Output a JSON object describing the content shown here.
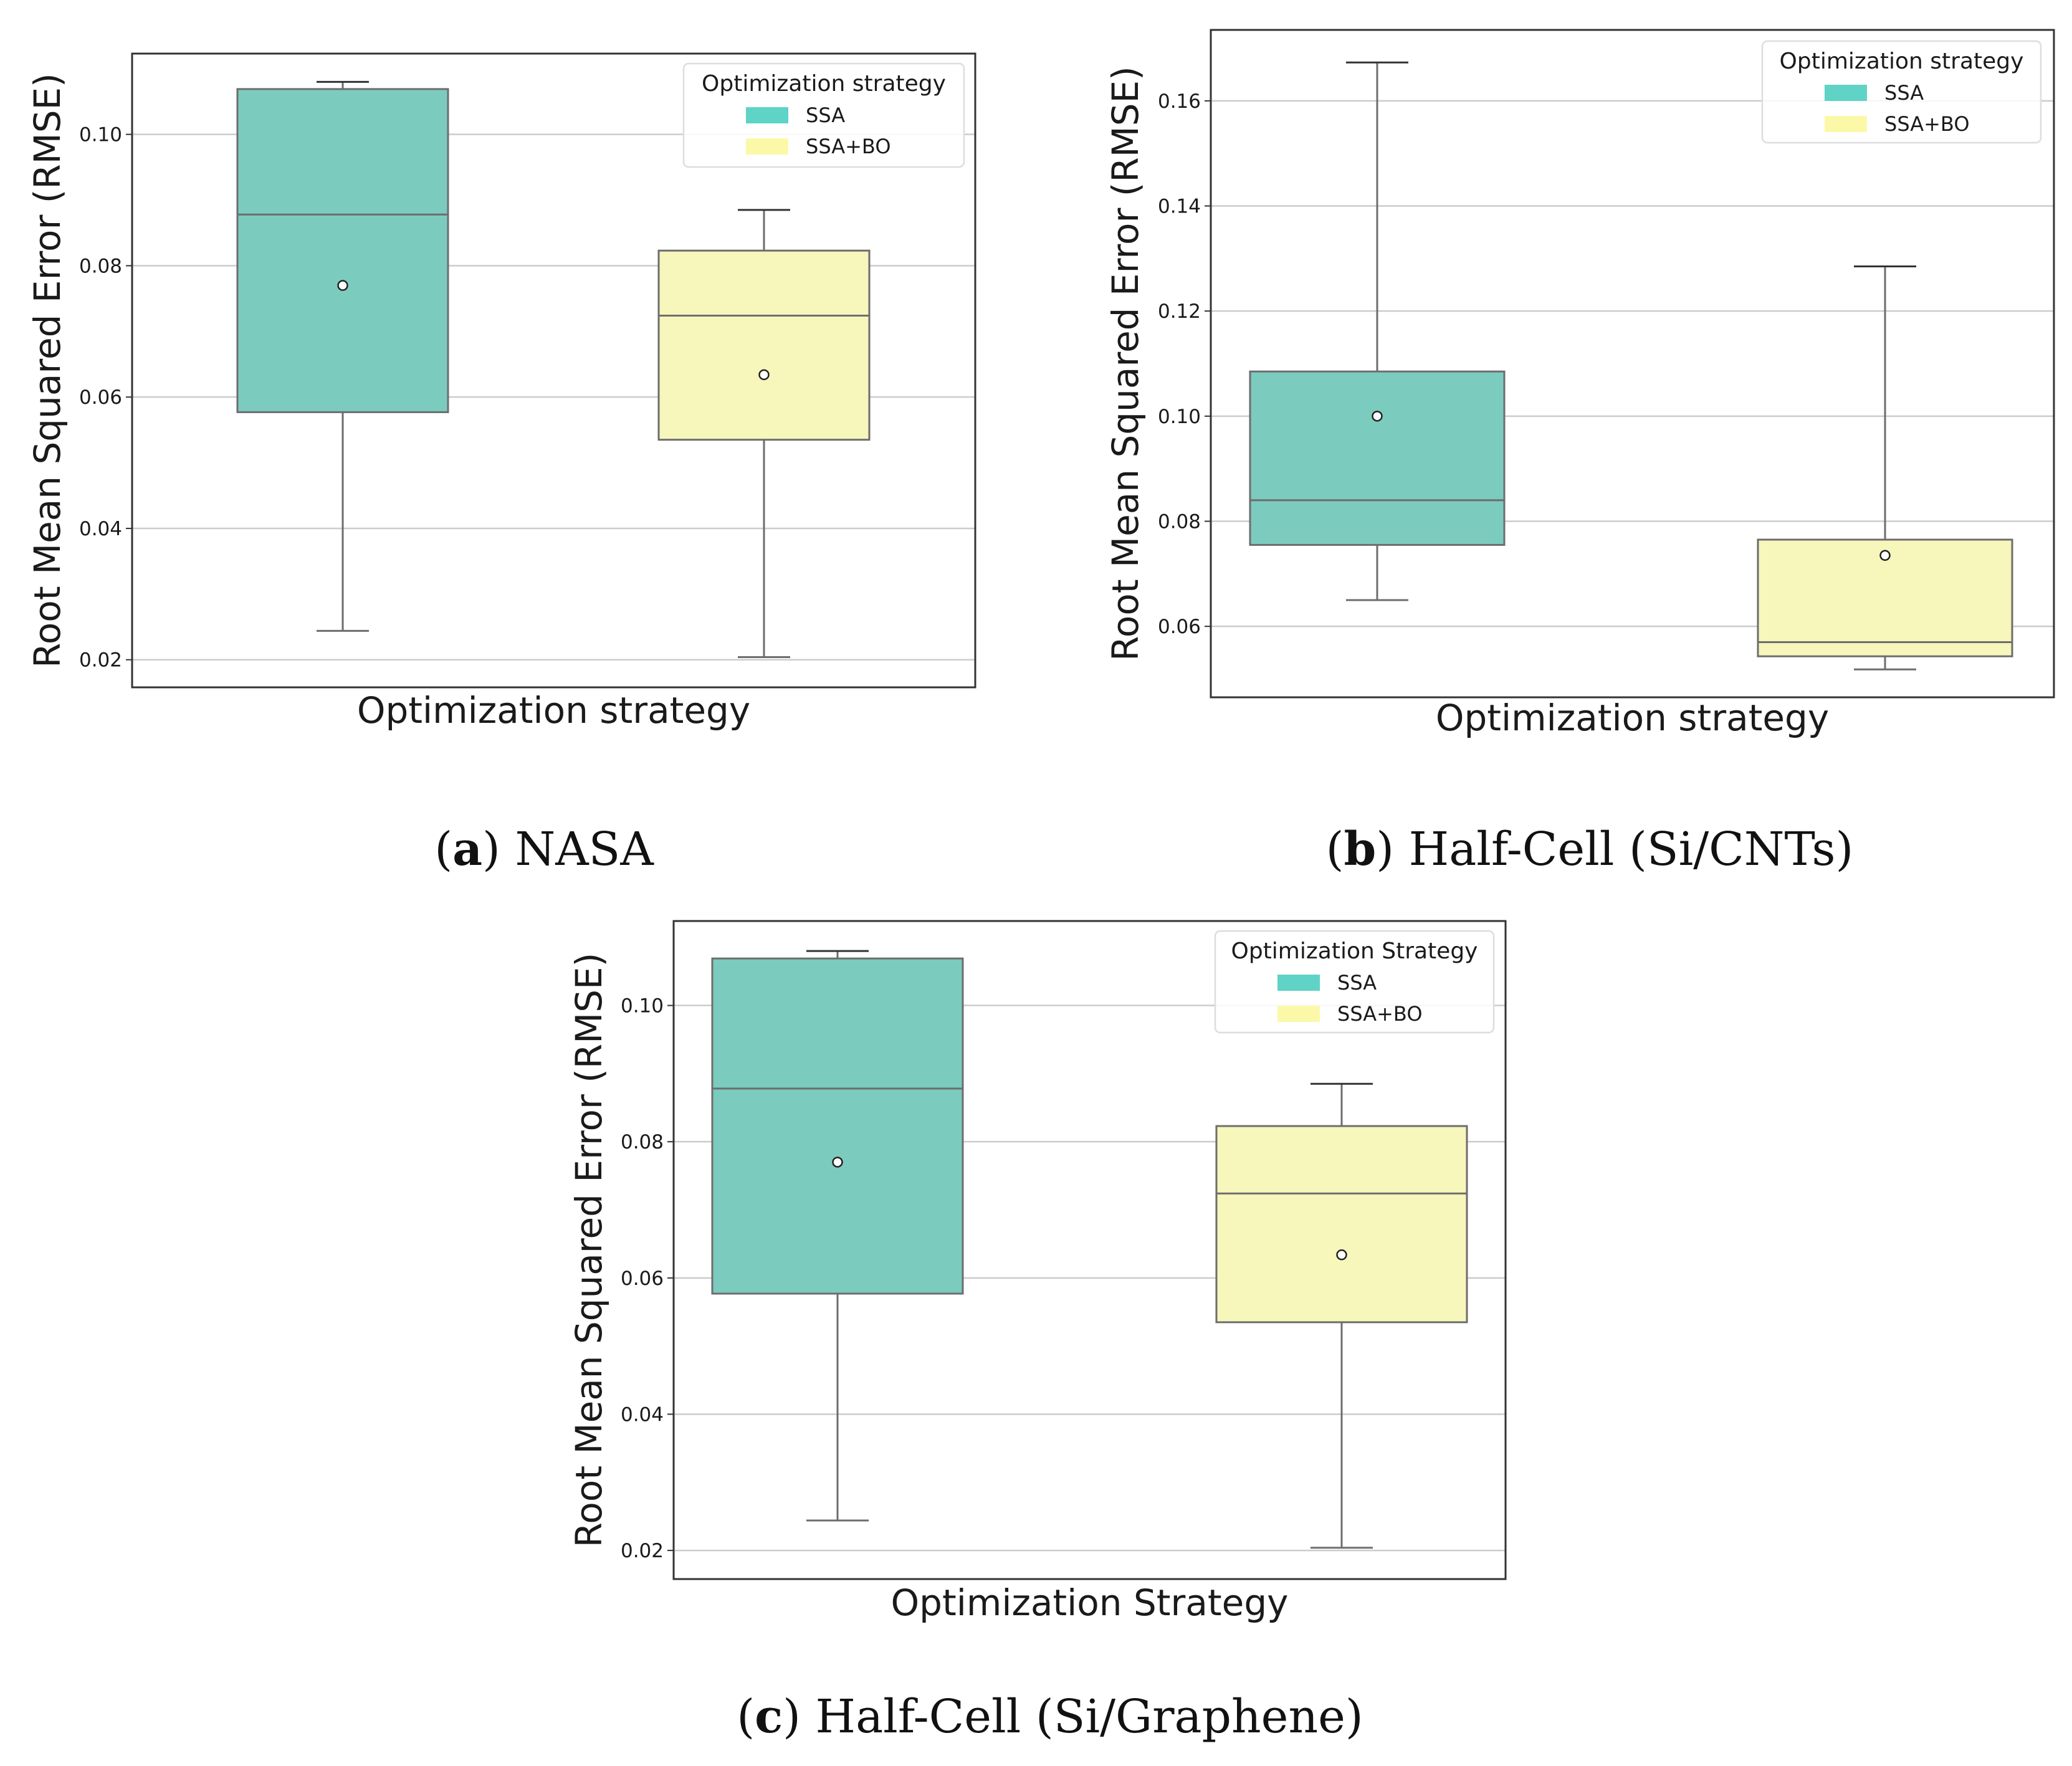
{
  "colors": {
    "ssa": "#7ccbbf",
    "ssa_legend": "#5ed3c6",
    "ssabo": "#f7f6bb",
    "ssabo_legend": "#fbf9a8",
    "line": "#6d6d6d",
    "whisker_dark": "#333333",
    "grid": "#cccccc"
  },
  "chart_data": [
    {
      "type": "box",
      "caption": {
        "letter": "a",
        "text": "NASA"
      },
      "xlabel": "Optimization strategy",
      "ylabel": "Root Mean Squared Error (RMSE)",
      "ylim": [
        0.0158,
        0.1123
      ],
      "yticks": [
        "0.02",
        "0.04",
        "0.06",
        "0.08",
        "0.10"
      ],
      "legend": {
        "title": "Optimization strategy",
        "position": "top-right",
        "entries": [
          "SSA",
          "SSA+BO"
        ]
      },
      "series": [
        {
          "name": "SSA",
          "whisker_low": 0.0244,
          "q1": 0.0577,
          "median": 0.0878,
          "q3": 0.1069,
          "whisker_high": 0.108,
          "mean": 0.077
        },
        {
          "name": "SSA+BO",
          "whisker_low": 0.0204,
          "q1": 0.0535,
          "median": 0.0724,
          "q3": 0.0823,
          "whisker_high": 0.0885,
          "mean": 0.0634
        }
      ]
    },
    {
      "type": "box",
      "caption": {
        "letter": "b",
        "text": "Half-Cell (Si/CNTs)"
      },
      "xlabel": "Optimization strategy",
      "ylabel": "Root Mean Squared Error (RMSE)",
      "ylim": [
        0.0465,
        0.1735
      ],
      "yticks": [
        "0.06",
        "0.08",
        "0.10",
        "0.12",
        "0.14",
        "0.16"
      ],
      "legend": {
        "title": "Optimization strategy",
        "position": "top-right",
        "entries": [
          "SSA",
          "SSA+BO"
        ]
      },
      "series": [
        {
          "name": "SSA",
          "whisker_low": 0.065,
          "q1": 0.0755,
          "median": 0.084,
          "q3": 0.1085,
          "whisker_high": 0.1673,
          "mean": 0.1
        },
        {
          "name": "SSA+BO",
          "whisker_low": 0.0518,
          "q1": 0.0543,
          "median": 0.057,
          "q3": 0.0765,
          "whisker_high": 0.1285,
          "mean": 0.0735
        }
      ]
    },
    {
      "type": "box",
      "caption": {
        "letter": "c",
        "text": "Half-Cell (Si/Graphene)"
      },
      "xlabel": "Optimization Strategy",
      "ylabel": "Root Mean Squared Error (RMSE)",
      "ylim": [
        0.0158,
        0.1124
      ],
      "yticks": [
        "0.02",
        "0.04",
        "0.06",
        "0.08",
        "0.10"
      ],
      "legend": {
        "title": "Optimization Strategy",
        "position": "top-right",
        "entries": [
          "SSA",
          "SSA+BO"
        ]
      },
      "series": [
        {
          "name": "SSA",
          "whisker_low": 0.0244,
          "q1": 0.0577,
          "median": 0.0878,
          "q3": 0.1069,
          "whisker_high": 0.108,
          "mean": 0.077
        },
        {
          "name": "SSA+BO",
          "whisker_low": 0.0204,
          "q1": 0.0535,
          "median": 0.0724,
          "q3": 0.0823,
          "whisker_high": 0.0885,
          "mean": 0.0634
        }
      ]
    }
  ]
}
